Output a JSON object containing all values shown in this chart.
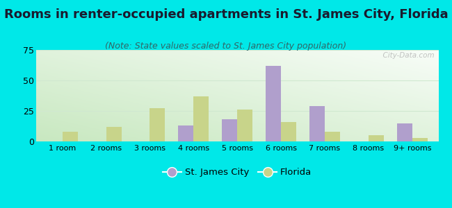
{
  "categories": [
    "1 room",
    "2 rooms",
    "3 rooms",
    "4 rooms",
    "5 rooms",
    "6 rooms",
    "7 rooms",
    "8 rooms",
    "9+ rooms"
  ],
  "st_james_values": [
    0,
    0,
    0,
    13,
    18,
    62,
    29,
    0,
    15
  ],
  "florida_values": [
    8,
    12,
    27,
    37,
    26,
    16,
    8,
    5,
    3
  ],
  "st_james_color": "#b09fcc",
  "florida_color": "#c8d48a",
  "title": "Rooms in renter-occupied apartments in St. James City, Florida",
  "subtitle": "(Note: State values scaled to St. James City population)",
  "ylim": [
    0,
    75
  ],
  "yticks": [
    0,
    25,
    50,
    75
  ],
  "background_outer": "#00e8e8",
  "background_grad_green": "#c8e8c0",
  "background_grad_white": "#f5faf5",
  "legend_labels": [
    "St. James City",
    "Florida"
  ],
  "bar_width": 0.35,
  "title_fontsize": 13,
  "subtitle_fontsize": 9,
  "watermark_text": "  City-Data.com",
  "grid_color": "#d0e8d0"
}
